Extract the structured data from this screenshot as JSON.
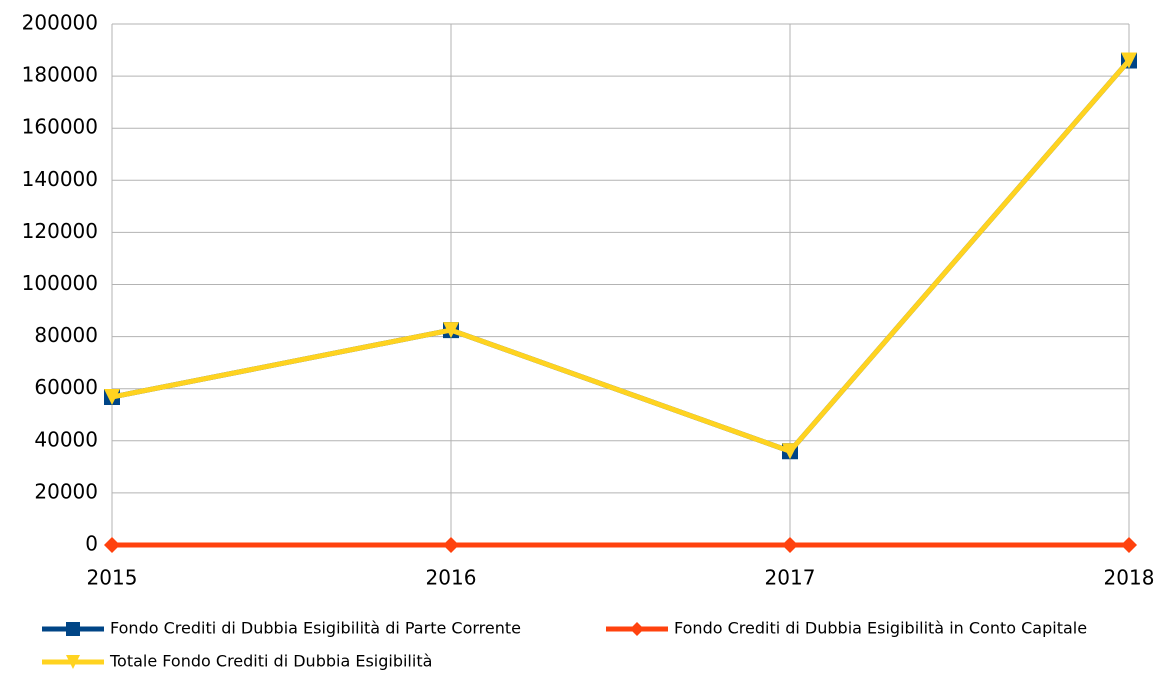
{
  "chart_data": {
    "type": "line",
    "categories": [
      "2015",
      "2016",
      "2017",
      "2018"
    ],
    "series": [
      {
        "name": "Fondo Crediti di Dubbia Esigibilità di Parte Corrente",
        "color": "#004586",
        "marker": "square",
        "values": [
          56800,
          82500,
          36000,
          186000
        ]
      },
      {
        "name": "Fondo Crediti di Dubbia Esigibilità in Conto Capitale",
        "color": "#ff420e",
        "marker": "diamond",
        "values": [
          0,
          0,
          0,
          0
        ]
      },
      {
        "name": "Totale Fondo Crediti di Dubbia Esigibilità",
        "color": "#ffd320",
        "marker": "triangle-down",
        "values": [
          56800,
          82500,
          36000,
          186000
        ]
      }
    ],
    "ylim": [
      0,
      200000
    ],
    "yticks": [
      0,
      20000,
      40000,
      60000,
      80000,
      100000,
      120000,
      140000,
      160000,
      180000,
      200000
    ],
    "grid": true,
    "legend": "bottom"
  }
}
